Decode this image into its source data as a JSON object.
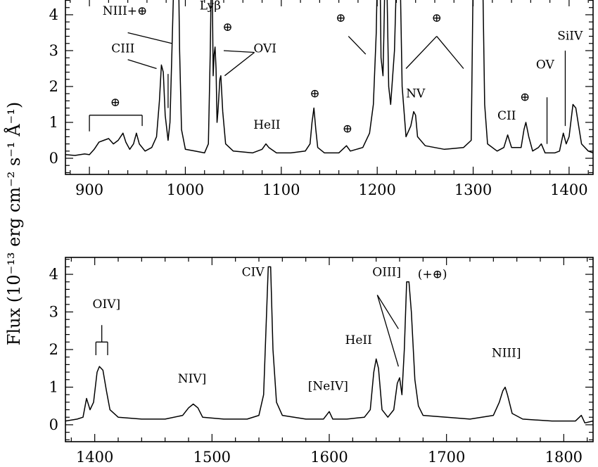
{
  "chart_data": [
    {
      "type": "line",
      "panel": "top",
      "xlim": [
        875,
        1425
      ],
      "ylim": [
        -0.45,
        4.45
      ],
      "xticks": [
        900,
        1000,
        1100,
        1200,
        1300,
        1400
      ],
      "yticks": [
        0,
        1,
        2,
        3,
        4
      ],
      "series": [
        {
          "points": [
            [
              875,
              0.1
            ],
            [
              885,
              0.08
            ],
            [
              895,
              0.12
            ],
            [
              900,
              0.1
            ],
            [
              905,
              0.25
            ],
            [
              910,
              0.45
            ],
            [
              915,
              0.5
            ],
            [
              920,
              0.55
            ],
            [
              925,
              0.4
            ],
            [
              930,
              0.5
            ],
            [
              935,
              0.7
            ],
            [
              938,
              0.45
            ],
            [
              942,
              0.25
            ],
            [
              946,
              0.4
            ],
            [
              949,
              0.7
            ],
            [
              952,
              0.4
            ],
            [
              958,
              0.2
            ],
            [
              965,
              0.3
            ],
            [
              970,
              0.6
            ],
            [
              973,
              1.6
            ],
            [
              975,
              2.6
            ],
            [
              977,
              2.4
            ],
            [
              979,
              1.2
            ],
            [
              982,
              0.5
            ],
            [
              984,
              1.0
            ],
            [
              986,
              3.0
            ],
            [
              988,
              5.0
            ],
            [
              993,
              5.0
            ],
            [
              994,
              3.0
            ],
            [
              996,
              0.8
            ],
            [
              1000,
              0.25
            ],
            [
              1010,
              0.2
            ],
            [
              1020,
              0.15
            ],
            [
              1024,
              0.4
            ],
            [
              1026,
              3.0
            ],
            [
              1027,
              5.0
            ],
            [
              1028,
              5.0
            ],
            [
              1029,
              2.3
            ],
            [
              1030,
              2.9
            ],
            [
              1031,
              3.1
            ],
            [
              1032,
              2.5
            ],
            [
              1033,
              1.0
            ],
            [
              1034,
              1.3
            ],
            [
              1036,
              2.2
            ],
            [
              1037,
              2.3
            ],
            [
              1039,
              1.3
            ],
            [
              1042,
              0.4
            ],
            [
              1050,
              0.2
            ],
            [
              1070,
              0.15
            ],
            [
              1080,
              0.25
            ],
            [
              1084,
              0.4
            ],
            [
              1087,
              0.3
            ],
            [
              1095,
              0.15
            ],
            [
              1110,
              0.15
            ],
            [
              1125,
              0.2
            ],
            [
              1130,
              0.4
            ],
            [
              1132,
              1.0
            ],
            [
              1134,
              1.4
            ],
            [
              1136,
              0.8
            ],
            [
              1138,
              0.3
            ],
            [
              1145,
              0.15
            ],
            [
              1160,
              0.15
            ],
            [
              1168,
              0.35
            ],
            [
              1172,
              0.2
            ],
            [
              1185,
              0.3
            ],
            [
              1192,
              0.7
            ],
            [
              1196,
              1.5
            ],
            [
              1199,
              3.5
            ],
            [
              1200,
              5.0
            ],
            [
              1203,
              5.0
            ],
            [
              1204,
              2.8
            ],
            [
              1206,
              2.3
            ],
            [
              1207,
              3.5
            ],
            [
              1208,
              5.0
            ],
            [
              1210,
              5.0
            ],
            [
              1212,
              2.0
            ],
            [
              1214,
              1.5
            ],
            [
              1218,
              3.0
            ],
            [
              1220,
              5.0
            ],
            [
              1224,
              5.0
            ],
            [
              1226,
              2.0
            ],
            [
              1230,
              0.6
            ],
            [
              1235,
              0.9
            ],
            [
              1238,
              1.3
            ],
            [
              1240,
              1.2
            ],
            [
              1242,
              0.6
            ],
            [
              1250,
              0.35
            ],
            [
              1270,
              0.25
            ],
            [
              1290,
              0.3
            ],
            [
              1298,
              0.5
            ],
            [
              1300,
              5.0
            ],
            [
              1310,
              5.0
            ],
            [
              1312,
              1.5
            ],
            [
              1315,
              0.4
            ],
            [
              1325,
              0.2
            ],
            [
              1332,
              0.3
            ],
            [
              1336,
              0.65
            ],
            [
              1340,
              0.3
            ],
            [
              1350,
              0.3
            ],
            [
              1353,
              0.8
            ],
            [
              1355,
              1.0
            ],
            [
              1358,
              0.6
            ],
            [
              1362,
              0.2
            ],
            [
              1368,
              0.3
            ],
            [
              1371,
              0.4
            ],
            [
              1375,
              0.15
            ],
            [
              1385,
              0.15
            ],
            [
              1390,
              0.2
            ],
            [
              1394,
              0.7
            ],
            [
              1397,
              0.4
            ],
            [
              1400,
              0.6
            ],
            [
              1404,
              1.5
            ],
            [
              1407,
              1.4
            ],
            [
              1410,
              0.9
            ],
            [
              1413,
              0.4
            ],
            [
              1420,
              0.2
            ],
            [
              1425,
              0.15
            ]
          ]
        }
      ],
      "annotations": [
        {
          "text": "NIII+⊕",
          "x": 937,
          "y": 4.0
        },
        {
          "text": "Lyβ",
          "x": 1026,
          "y": 4.15
        },
        {
          "text": "⊕",
          "x": 1044,
          "y": 3.55
        },
        {
          "text": "CIII",
          "x": 935,
          "y": 2.95
        },
        {
          "text": "OVI",
          "x": 1083,
          "y": 2.95
        },
        {
          "text": "⊕",
          "x": 1162,
          "y": 3.8
        },
        {
          "text": "⊕",
          "x": 1262,
          "y": 3.8
        },
        {
          "text": "SiIV",
          "x": 1401,
          "y": 3.3
        },
        {
          "text": "OV",
          "x": 1375,
          "y": 2.5
        },
        {
          "text": "⊕",
          "x": 1135,
          "y": 1.7
        },
        {
          "text": "⊕",
          "x": 1354,
          "y": 1.6
        },
        {
          "text": "NV",
          "x": 1240,
          "y": 1.7
        },
        {
          "text": "⊕",
          "x": 927,
          "y": 1.45
        },
        {
          "text": "CII",
          "x": 1335,
          "y": 1.08
        },
        {
          "text": "HeII",
          "x": 1085,
          "y": 0.82
        },
        {
          "text": "⊕",
          "x": 1169,
          "y": 0.72
        }
      ]
    },
    {
      "type": "line",
      "panel": "bottom",
      "xlim": [
        1375,
        1825
      ],
      "ylim": [
        -0.45,
        4.45
      ],
      "xticks": [
        1400,
        1500,
        1600,
        1700,
        1800
      ],
      "yticks": [
        0,
        1,
        2,
        3,
        4
      ],
      "ylabel": "Flux (10⁻¹³ erg cm⁻² s⁻¹ Å⁻¹)",
      "series": [
        {
          "points": [
            [
              1375,
              0.1
            ],
            [
              1385,
              0.15
            ],
            [
              1390,
              0.2
            ],
            [
              1393,
              0.7
            ],
            [
              1396,
              0.4
            ],
            [
              1399,
              0.6
            ],
            [
              1402,
              1.4
            ],
            [
              1404,
              1.55
            ],
            [
              1407,
              1.45
            ],
            [
              1410,
              0.9
            ],
            [
              1413,
              0.4
            ],
            [
              1420,
              0.2
            ],
            [
              1440,
              0.15
            ],
            [
              1460,
              0.15
            ],
            [
              1475,
              0.25
            ],
            [
              1480,
              0.45
            ],
            [
              1484,
              0.55
            ],
            [
              1488,
              0.45
            ],
            [
              1492,
              0.2
            ],
            [
              1510,
              0.15
            ],
            [
              1530,
              0.15
            ],
            [
              1540,
              0.25
            ],
            [
              1544,
              0.8
            ],
            [
              1546,
              2.5
            ],
            [
              1548,
              4.2
            ],
            [
              1550,
              4.2
            ],
            [
              1552,
              2.0
            ],
            [
              1555,
              0.6
            ],
            [
              1560,
              0.25
            ],
            [
              1580,
              0.15
            ],
            [
              1595,
              0.15
            ],
            [
              1600,
              0.35
            ],
            [
              1603,
              0.15
            ],
            [
              1615,
              0.15
            ],
            [
              1630,
              0.2
            ],
            [
              1635,
              0.4
            ],
            [
              1638,
              1.4
            ],
            [
              1640,
              1.75
            ],
            [
              1642,
              1.5
            ],
            [
              1645,
              0.4
            ],
            [
              1650,
              0.2
            ],
            [
              1655,
              0.4
            ],
            [
              1658,
              1.1
            ],
            [
              1660,
              1.25
            ],
            [
              1662,
              0.8
            ],
            [
              1664,
              2.0
            ],
            [
              1666,
              3.8
            ],
            [
              1668,
              3.8
            ],
            [
              1670,
              3.0
            ],
            [
              1673,
              1.2
            ],
            [
              1676,
              0.5
            ],
            [
              1680,
              0.25
            ],
            [
              1700,
              0.2
            ],
            [
              1720,
              0.15
            ],
            [
              1740,
              0.25
            ],
            [
              1745,
              0.6
            ],
            [
              1748,
              0.9
            ],
            [
              1750,
              1.0
            ],
            [
              1752,
              0.8
            ],
            [
              1756,
              0.3
            ],
            [
              1765,
              0.15
            ],
            [
              1790,
              0.1
            ],
            [
              1810,
              0.1
            ],
            [
              1815,
              0.25
            ],
            [
              1818,
              0.05
            ],
            [
              1825,
              0.1
            ]
          ]
        }
      ],
      "annotations": [
        {
          "text": "OIV]",
          "x": 1410,
          "y": 3.1
        },
        {
          "text": "CIV",
          "x": 1535,
          "y": 3.95
        },
        {
          "text": "OIII]",
          "x": 1649,
          "y": 3.95
        },
        {
          "text": "(+⊕)",
          "x": 1688,
          "y": 3.9
        },
        {
          "text": "HeII",
          "x": 1625,
          "y": 2.15
        },
        {
          "text": "NIV]",
          "x": 1483,
          "y": 1.12
        },
        {
          "text": "NIII]",
          "x": 1751,
          "y": 1.8
        },
        {
          "text": "[NeIV]",
          "x": 1599,
          "y": 0.92
        }
      ]
    }
  ]
}
